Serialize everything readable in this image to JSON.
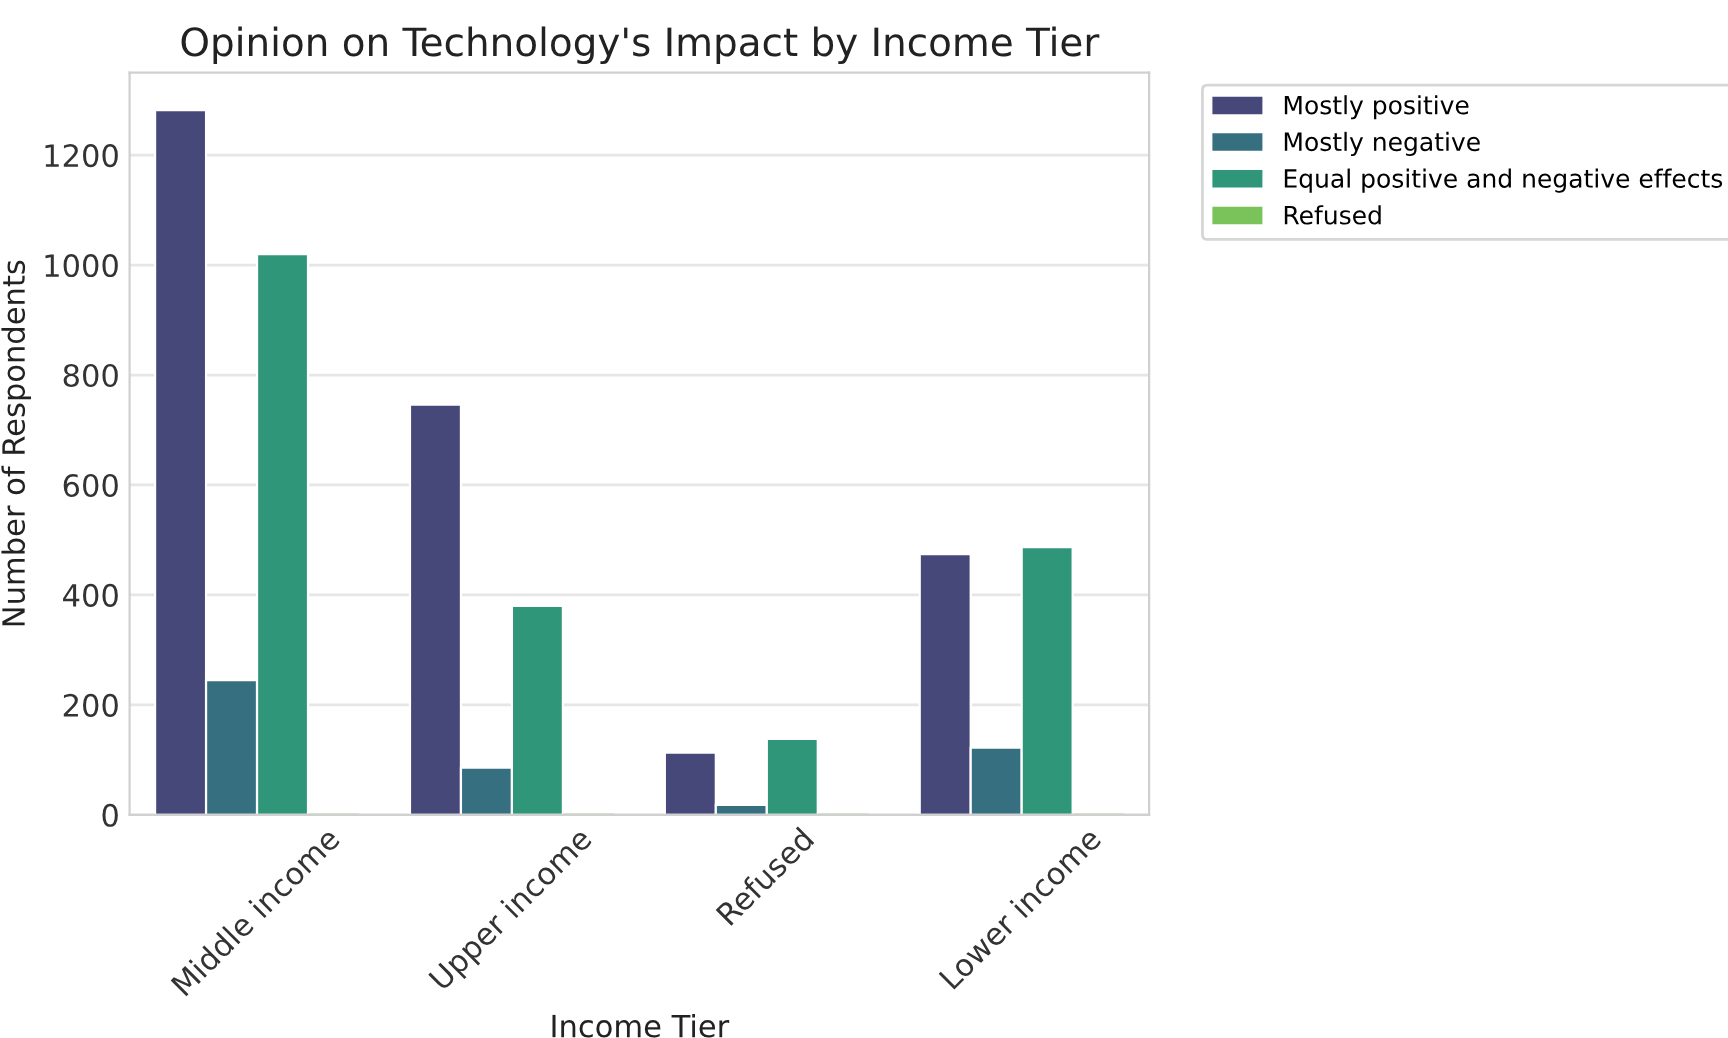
{
  "chart_data": {
    "type": "bar",
    "title": "Opinion on Technology's Impact by Income Tier",
    "xlabel": "Income Tier",
    "ylabel": "Number of Respondents",
    "categories": [
      "Middle income",
      "Upper income",
      "Refused",
      "Lower income"
    ],
    "series": [
      {
        "name": "Mostly positive",
        "color": "#46487a",
        "values": [
          1282,
          746,
          113,
          474
        ]
      },
      {
        "name": "Mostly negative",
        "color": "#366f80",
        "values": [
          245,
          86,
          18,
          122
        ]
      },
      {
        "name": "Equal positive and negative effects",
        "color": "#30967a",
        "values": [
          1020,
          380,
          138,
          487
        ]
      },
      {
        "name": "Refused",
        "color": "#7ac35a",
        "values": [
          0,
          0,
          0,
          0
        ]
      }
    ],
    "ylim": [
      0,
      1350
    ],
    "yticks": [
      0,
      200,
      400,
      600,
      800,
      1000,
      1200
    ],
    "grid": "y",
    "legend": "top right"
  }
}
